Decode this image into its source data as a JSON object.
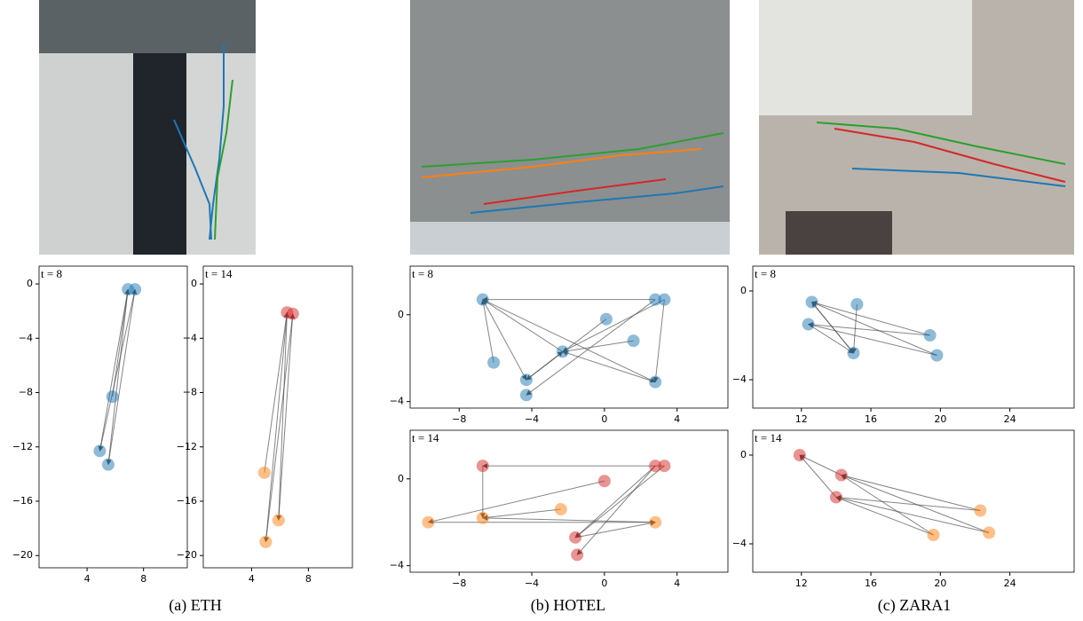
{
  "captions": [
    "(a) ETH",
    "(b) HOTEL",
    "(c) ZARA1"
  ],
  "chart_data": [
    {
      "type": "scatter",
      "annotation": "t = 8",
      "xlim": [
        0.6,
        11.1
      ],
      "ylim": [
        -20.9,
        1.31
      ],
      "xticks": [
        4,
        8
      ],
      "yticks": [
        0,
        {
          "value": -4,
          "label": "−4"
        },
        {
          "value": -8,
          "label": "−8"
        },
        {
          "value": -12,
          "label": "−12"
        },
        {
          "value": -16,
          "label": "−16"
        },
        {
          "value": -20,
          "label": "−20"
        }
      ],
      "series": [
        {
          "color": "#1f77b4",
          "x": [
            6.9,
            7.4,
            5.8,
            4.9,
            5.5
          ],
          "y": [
            -0.4,
            -0.4,
            -8.3,
            -12.3,
            -13.3
          ]
        }
      ],
      "edges": [
        [
          3,
          0
        ],
        [
          4,
          1
        ],
        [
          2,
          0
        ],
        [
          0,
          4
        ],
        [
          1,
          3
        ]
      ]
    },
    {
      "type": "scatter",
      "annotation": "t = 14",
      "xlim": [
        0.6,
        11.1
      ],
      "ylim": [
        -20.9,
        1.31
      ],
      "xticks": [
        4,
        8
      ],
      "yticks": [
        0,
        {
          "value": -4,
          "label": "−4"
        },
        {
          "value": -8,
          "label": "−8"
        },
        {
          "value": -12,
          "label": "−12"
        },
        {
          "value": -16,
          "label": "−16"
        },
        {
          "value": -20,
          "label": "−20"
        }
      ],
      "series": [
        {
          "color": "#d62728",
          "x": [
            6.5,
            6.9
          ],
          "y": [
            -2.1,
            -2.2
          ]
        },
        {
          "color": "#ff7f0e",
          "x": [
            4.9,
            5.9,
            5.0
          ],
          "y": [
            -13.9,
            -17.4,
            -19.0
          ]
        }
      ],
      "edges": [
        [
          2,
          0
        ],
        [
          3,
          1
        ],
        [
          4,
          0
        ],
        [
          0,
          3
        ],
        [
          1,
          4
        ]
      ]
    },
    {
      "type": "scatter",
      "annotation": "t = 8",
      "xlim": [
        -10.7,
        6.8
      ],
      "ylim": [
        -4.3,
        2.24
      ],
      "xticks": [
        {
          "value": -8,
          "label": "−8"
        },
        {
          "value": -4,
          "label": "−4"
        },
        0,
        4
      ],
      "yticks": [
        0,
        {
          "value": -4,
          "label": "−4"
        }
      ],
      "series": [
        {
          "color": "#1f77b4",
          "x": [
            -6.7,
            -6.1,
            -4.3,
            -4.3,
            -2.3,
            0.1,
            1.6,
            2.8,
            3.3,
            2.8
          ],
          "y": [
            0.7,
            -2.2,
            -3.0,
            -3.7,
            -1.7,
            -0.2,
            -1.2,
            0.7,
            0.7,
            -3.1
          ]
        }
      ],
      "edges": [
        [
          7,
          0
        ],
        [
          0,
          9
        ],
        [
          0,
          2
        ],
        [
          4,
          0
        ],
        [
          9,
          4
        ],
        [
          2,
          4
        ],
        [
          8,
          9
        ],
        [
          7,
          3
        ],
        [
          5,
          2
        ],
        [
          6,
          4
        ],
        [
          1,
          0
        ],
        [
          8,
          4
        ]
      ]
    },
    {
      "type": "scatter",
      "annotation": "t = 14",
      "xlim": [
        -10.7,
        6.8
      ],
      "ylim": [
        -4.3,
        2.24
      ],
      "xticks": [
        {
          "value": -8,
          "label": "−8"
        },
        {
          "value": -4,
          "label": "−4"
        },
        0,
        4
      ],
      "yticks": [
        0,
        {
          "value": -4,
          "label": "−4"
        }
      ],
      "series": [
        {
          "color": "#d62728",
          "x": [
            -6.7,
            0.0,
            2.8,
            3.3,
            -1.6,
            -1.5
          ],
          "y": [
            0.6,
            -0.1,
            0.6,
            0.6,
            -2.7,
            -3.5
          ]
        },
        {
          "color": "#ff7f0e",
          "x": [
            -9.7,
            -6.7,
            -2.4,
            2.8
          ],
          "y": [
            -2.0,
            -1.8,
            -1.4,
            -2.0
          ]
        }
      ],
      "edges": [
        [
          3,
          0
        ],
        [
          0,
          7
        ],
        [
          2,
          4
        ],
        [
          3,
          4
        ],
        [
          6,
          9
        ],
        [
          9,
          7
        ],
        [
          1,
          6
        ],
        [
          8,
          7
        ],
        [
          2,
          5
        ],
        [
          4,
          9
        ]
      ]
    },
    {
      "type": "scatter",
      "annotation": "t = 8",
      "xlim": [
        9.2,
        27.7
      ],
      "ylim": [
        -5.28,
        1.12
      ],
      "xticks": [
        12,
        16,
        20,
        24
      ],
      "yticks": [
        0,
        {
          "value": -4,
          "label": "−4"
        }
      ],
      "series": [
        {
          "color": "#1f77b4",
          "x": [
            12.6,
            12.4,
            15.2,
            15.0,
            19.4,
            19.8
          ],
          "y": [
            -0.5,
            -1.5,
            -0.6,
            -2.8,
            -2.0,
            -2.9
          ]
        }
      ],
      "edges": [
        [
          4,
          0
        ],
        [
          5,
          1
        ],
        [
          2,
          3
        ],
        [
          3,
          0
        ],
        [
          4,
          1
        ],
        [
          0,
          3
        ],
        [
          5,
          0
        ],
        [
          1,
          3
        ]
      ]
    },
    {
      "type": "scatter",
      "annotation": "t = 14",
      "xlim": [
        9.2,
        27.7
      ],
      "ylim": [
        -5.28,
        1.12
      ],
      "xticks": [
        12,
        16,
        20,
        24
      ],
      "yticks": [
        0,
        {
          "value": -4,
          "label": "−4"
        }
      ],
      "series": [
        {
          "color": "#d62728",
          "x": [
            11.9,
            14.3,
            14.0
          ],
          "y": [
            0.0,
            -0.9,
            -1.9
          ]
        },
        {
          "color": "#ff7f0e",
          "x": [
            22.3,
            22.8,
            19.6
          ],
          "y": [
            -2.5,
            -3.5,
            -3.6
          ]
        }
      ],
      "edges": [
        [
          3,
          1
        ],
        [
          4,
          1
        ],
        [
          3,
          2
        ],
        [
          5,
          2
        ],
        [
          4,
          2
        ],
        [
          1,
          0
        ],
        [
          2,
          0
        ],
        [
          5,
          1
        ]
      ]
    }
  ]
}
